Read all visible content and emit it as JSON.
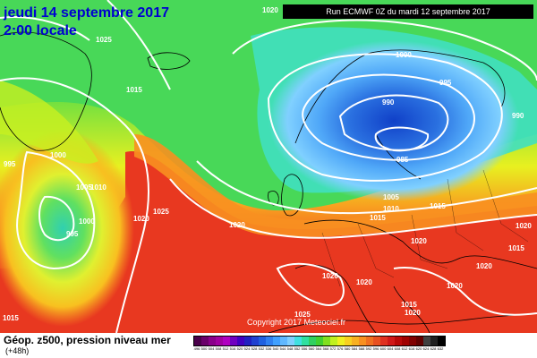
{
  "header": {
    "date": "jeudi 14 septembre 2017",
    "time": "2:00 locale",
    "run": "Run ECMWF 0Z du mardi 12 septembre 2017"
  },
  "footer": {
    "title": "Géop. z500, pression niveau mer",
    "subtitle": "(+48h)",
    "copyright": "Copyright 2017 Meteociel.fr"
  },
  "legend": {
    "colors": [
      "#4a004a",
      "#6a006a",
      "#8a008a",
      "#a000a0",
      "#b000c0",
      "#7000c0",
      "#4000c0",
      "#2020c0",
      "#2040d0",
      "#2060e0",
      "#3080f0",
      "#40a0ff",
      "#60b8ff",
      "#80d0ff",
      "#40e0e0",
      "#30e0a0",
      "#30d060",
      "#40d030",
      "#80e020",
      "#c0f020",
      "#f0f020",
      "#f8d020",
      "#f8b020",
      "#f89020",
      "#f07020",
      "#e85020",
      "#e03020",
      "#d01818",
      "#b80808",
      "#a00000",
      "#800000",
      "#600000",
      "#404040",
      "#202020",
      "#000000"
    ],
    "ticks": [
      "496",
      "500",
      "504",
      "508",
      "512",
      "516",
      "520",
      "524",
      "528",
      "532",
      "536",
      "540",
      "544",
      "548",
      "552",
      "556",
      "560",
      "564",
      "568",
      "572",
      "576",
      "580",
      "584",
      "588",
      "592",
      "596",
      "600",
      "604",
      "608",
      "612",
      "616",
      "620",
      "624",
      "628",
      "632"
    ]
  },
  "isobar_labels": [
    {
      "text": "1020"
    },
    {
      "text": "1025"
    },
    {
      "text": "1015"
    },
    {
      "text": "1000"
    },
    {
      "text": "1005"
    },
    {
      "text": "1010"
    },
    {
      "text": "1000"
    },
    {
      "text": "995"
    },
    {
      "text": "995"
    },
    {
      "text": "1020"
    },
    {
      "text": "1025"
    },
    {
      "text": "1000"
    },
    {
      "text": "995"
    },
    {
      "text": "990"
    },
    {
      "text": "990"
    },
    {
      "text": "985"
    },
    {
      "text": "1005"
    },
    {
      "text": "1010"
    },
    {
      "text": "1015"
    },
    {
      "text": "1015"
    },
    {
      "text": "1020"
    },
    {
      "text": "1020"
    },
    {
      "text": "1015"
    },
    {
      "text": "1020"
    },
    {
      "text": "1020"
    },
    {
      "text": "1020"
    },
    {
      "text": "1015"
    },
    {
      "text": "1025"
    },
    {
      "text": "1020"
    },
    {
      "text": "1015"
    },
    {
      "text": "1020"
    },
    {
      "text": "1020"
    }
  ]
}
